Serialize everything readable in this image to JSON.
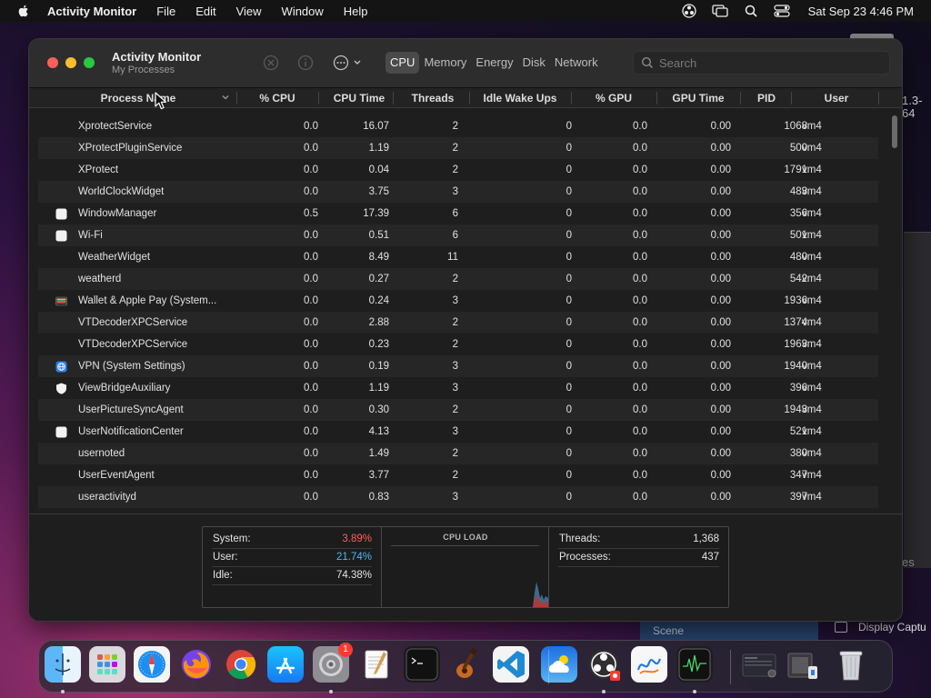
{
  "menubar": {
    "app_name": "Activity Monitor",
    "menus": [
      "File",
      "Edit",
      "View",
      "Window",
      "Help"
    ],
    "clock": "Sat Sep 23  4:46 PM"
  },
  "background": {
    "fragment_top": "1.3-",
    "fragment_bottom": "64",
    "side_text": "es",
    "scene_label": "Scene",
    "display_label": "Display Captu"
  },
  "window": {
    "title": "Activity Monitor",
    "subtitle": "My Processes",
    "tabs": [
      {
        "label": "CPU",
        "active": true
      },
      {
        "label": "Memory",
        "active": false
      },
      {
        "label": "Energy",
        "active": false
      },
      {
        "label": "Disk",
        "active": false
      },
      {
        "label": "Network",
        "active": false
      }
    ],
    "search_placeholder": "Search"
  },
  "table": {
    "columns": [
      "Process Name",
      "% CPU",
      "CPU Time",
      "Threads",
      "Idle Wake Ups",
      "% GPU",
      "GPU Time",
      "PID",
      "User"
    ],
    "rows": [
      {
        "icon": "none",
        "name": "XprotectService",
        "cpu": "0.0",
        "cpu_time": "16.07",
        "threads": "2",
        "idle": "0",
        "gpu": "0.0",
        "gpu_time": "0.00",
        "pid": "1068",
        "user": "vm4"
      },
      {
        "icon": "none",
        "name": "XProtectPluginService",
        "cpu": "0.0",
        "cpu_time": "1.19",
        "threads": "2",
        "idle": "0",
        "gpu": "0.0",
        "gpu_time": "0.00",
        "pid": "500",
        "user": "vm4"
      },
      {
        "icon": "none",
        "name": "XProtect",
        "cpu": "0.0",
        "cpu_time": "0.04",
        "threads": "2",
        "idle": "0",
        "gpu": "0.0",
        "gpu_time": "0.00",
        "pid": "1791",
        "user": "vm4"
      },
      {
        "icon": "none",
        "name": "WorldClockWidget",
        "cpu": "0.0",
        "cpu_time": "3.75",
        "threads": "3",
        "idle": "0",
        "gpu": "0.0",
        "gpu_time": "0.00",
        "pid": "483",
        "user": "vm4"
      },
      {
        "icon": "blank-app-icon",
        "name": "WindowManager",
        "cpu": "0.5",
        "cpu_time": "17.39",
        "threads": "6",
        "idle": "0",
        "gpu": "0.0",
        "gpu_time": "0.00",
        "pid": "356",
        "user": "vm4"
      },
      {
        "icon": "blank-app-icon",
        "name": "Wi-Fi",
        "cpu": "0.0",
        "cpu_time": "0.51",
        "threads": "6",
        "idle": "0",
        "gpu": "0.0",
        "gpu_time": "0.00",
        "pid": "501",
        "user": "vm4"
      },
      {
        "icon": "none",
        "name": "WeatherWidget",
        "cpu": "0.0",
        "cpu_time": "8.49",
        "threads": "11",
        "idle": "0",
        "gpu": "0.0",
        "gpu_time": "0.00",
        "pid": "480",
        "user": "vm4"
      },
      {
        "icon": "none",
        "name": "weatherd",
        "cpu": "0.0",
        "cpu_time": "0.27",
        "threads": "2",
        "idle": "0",
        "gpu": "0.0",
        "gpu_time": "0.00",
        "pid": "542",
        "user": "vm4"
      },
      {
        "icon": "wallet-icon",
        "name": "Wallet & Apple Pay (System...",
        "cpu": "0.0",
        "cpu_time": "0.24",
        "threads": "3",
        "idle": "0",
        "gpu": "0.0",
        "gpu_time": "0.00",
        "pid": "1936",
        "user": "vm4"
      },
      {
        "icon": "none",
        "name": "VTDecoderXPCService",
        "cpu": "0.0",
        "cpu_time": "2.88",
        "threads": "2",
        "idle": "0",
        "gpu": "0.0",
        "gpu_time": "0.00",
        "pid": "1374",
        "user": "vm4"
      },
      {
        "icon": "none",
        "name": "VTDecoderXPCService",
        "cpu": "0.0",
        "cpu_time": "0.23",
        "threads": "2",
        "idle": "0",
        "gpu": "0.0",
        "gpu_time": "0.00",
        "pid": "1963",
        "user": "vm4"
      },
      {
        "icon": "vpn-icon",
        "name": "VPN (System Settings)",
        "cpu": "0.0",
        "cpu_time": "0.19",
        "threads": "3",
        "idle": "0",
        "gpu": "0.0",
        "gpu_time": "0.00",
        "pid": "1940",
        "user": "vm4"
      },
      {
        "icon": "shield-icon",
        "name": "ViewBridgeAuxiliary",
        "cpu": "0.0",
        "cpu_time": "1.19",
        "threads": "3",
        "idle": "0",
        "gpu": "0.0",
        "gpu_time": "0.00",
        "pid": "396",
        "user": "vm4"
      },
      {
        "icon": "none",
        "name": "UserPictureSyncAgent",
        "cpu": "0.0",
        "cpu_time": "0.30",
        "threads": "2",
        "idle": "0",
        "gpu": "0.0",
        "gpu_time": "0.00",
        "pid": "1943",
        "user": "vm4"
      },
      {
        "icon": "blank-app-icon",
        "name": "UserNotificationCenter",
        "cpu": "0.0",
        "cpu_time": "4.13",
        "threads": "3",
        "idle": "0",
        "gpu": "0.0",
        "gpu_time": "0.00",
        "pid": "521",
        "user": "vm4"
      },
      {
        "icon": "none",
        "name": "usernoted",
        "cpu": "0.0",
        "cpu_time": "1.49",
        "threads": "2",
        "idle": "0",
        "gpu": "0.0",
        "gpu_time": "0.00",
        "pid": "380",
        "user": "vm4"
      },
      {
        "icon": "none",
        "name": "UserEventAgent",
        "cpu": "0.0",
        "cpu_time": "3.77",
        "threads": "2",
        "idle": "0",
        "gpu": "0.0",
        "gpu_time": "0.00",
        "pid": "347",
        "user": "vm4"
      },
      {
        "icon": "none",
        "name": "useractivityd",
        "cpu": "0.0",
        "cpu_time": "0.83",
        "threads": "3",
        "idle": "0",
        "gpu": "0.0",
        "gpu_time": "0.00",
        "pid": "397",
        "user": "vm4"
      }
    ]
  },
  "stats": {
    "system_label": "System:",
    "system_value": "3.89%",
    "user_label": "User:",
    "user_value": "21.74%",
    "idle_label": "Idle:",
    "idle_value": "74.38%",
    "cpu_load_title": "CPU LOAD",
    "threads_label": "Threads:",
    "threads_value": "1,368",
    "processes_label": "Processes:",
    "processes_value": "437"
  },
  "colors": {
    "system": "#ff5f57",
    "user": "#4fb6f5"
  },
  "dock": {
    "apps": [
      "finder-icon",
      "launchpad-icon",
      "safari-icon",
      "firefox-icon",
      "chrome-icon",
      "app-store-icon",
      "system-settings-icon",
      "textedit-icon",
      "terminal-icon",
      "garageband-icon",
      "vscode-icon",
      "weather-icon",
      "obs-icon",
      "freeform-icon",
      "activity-monitor-icon",
      "window-preview-1",
      "window-preview-2",
      "trash-icon"
    ],
    "settings_badge": "1"
  }
}
